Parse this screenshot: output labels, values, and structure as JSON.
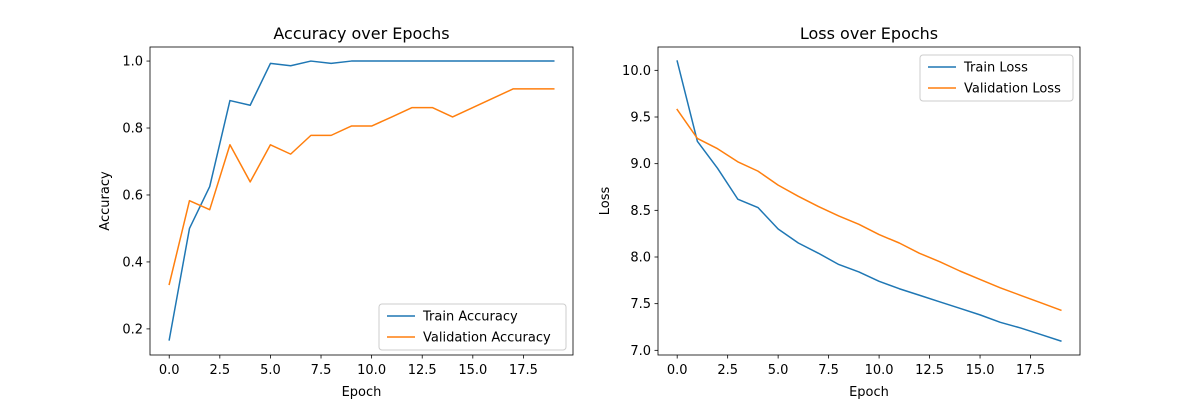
{
  "figure": {
    "background": "#ffffff"
  },
  "chart_data": [
    {
      "type": "line",
      "title": "Accuracy over Epochs",
      "xlabel": "Epoch",
      "ylabel": "Accuracy",
      "xlim": [
        -0.95,
        19.95
      ],
      "ylim": [
        0.122,
        1.042
      ],
      "xticks": [
        0,
        2.5,
        5,
        7.5,
        10,
        12.5,
        15,
        17.5
      ],
      "xtick_labels": [
        "0.0",
        "2.5",
        "5.0",
        "7.5",
        "10.0",
        "12.5",
        "15.0",
        "17.5"
      ],
      "yticks": [
        0.2,
        0.4,
        0.6,
        0.8,
        1.0
      ],
      "ytick_labels": [
        "0.2",
        "0.4",
        "0.6",
        "0.8",
        "1.0"
      ],
      "grid": false,
      "legend_position": "lower-right",
      "x": [
        0,
        1,
        2,
        3,
        4,
        5,
        6,
        7,
        8,
        9,
        10,
        11,
        12,
        13,
        14,
        15,
        16,
        17,
        18,
        19
      ],
      "series": [
        {
          "name": "Train Accuracy",
          "color": "#1f77b4",
          "values": [
            0.167,
            0.5,
            0.625,
            0.882,
            0.868,
            0.993,
            0.986,
            1.0,
            0.993,
            1.0,
            1.0,
            1.0,
            1.0,
            1.0,
            1.0,
            1.0,
            1.0,
            1.0,
            1.0,
            1.0
          ]
        },
        {
          "name": "Validation Accuracy",
          "color": "#ff7f0e",
          "values": [
            0.333,
            0.583,
            0.556,
            0.75,
            0.639,
            0.75,
            0.722,
            0.778,
            0.778,
            0.806,
            0.806,
            0.833,
            0.861,
            0.861,
            0.833,
            0.861,
            0.889,
            0.917,
            0.917,
            0.917
          ]
        }
      ]
    },
    {
      "type": "line",
      "title": "Loss over Epochs",
      "xlabel": "Epoch",
      "ylabel": "Loss",
      "xlim": [
        -0.95,
        19.95
      ],
      "ylim": [
        6.95,
        10.25
      ],
      "xticks": [
        0,
        2.5,
        5,
        7.5,
        10,
        12.5,
        15,
        17.5
      ],
      "xtick_labels": [
        "0.0",
        "2.5",
        "5.0",
        "7.5",
        "10.0",
        "12.5",
        "15.0",
        "17.5"
      ],
      "yticks": [
        7.0,
        7.5,
        8.0,
        8.5,
        9.0,
        9.5,
        10.0
      ],
      "ytick_labels": [
        "7.0",
        "7.5",
        "8.0",
        "8.5",
        "9.0",
        "9.5",
        "10.0"
      ],
      "grid": false,
      "legend_position": "upper-right",
      "x": [
        0,
        1,
        2,
        3,
        4,
        5,
        6,
        7,
        8,
        9,
        10,
        11,
        12,
        13,
        14,
        15,
        16,
        17,
        18,
        19
      ],
      "series": [
        {
          "name": "Train Loss",
          "color": "#1f77b4",
          "values": [
            10.1,
            9.24,
            8.95,
            8.62,
            8.53,
            8.3,
            8.15,
            8.04,
            7.92,
            7.84,
            7.74,
            7.66,
            7.59,
            7.52,
            7.45,
            7.38,
            7.3,
            7.24,
            7.17,
            7.1
          ]
        },
        {
          "name": "Validation Loss",
          "color": "#ff7f0e",
          "values": [
            9.58,
            9.27,
            9.16,
            9.02,
            8.92,
            8.77,
            8.65,
            8.54,
            8.44,
            8.35,
            8.24,
            8.15,
            8.04,
            7.95,
            7.85,
            7.76,
            7.67,
            7.59,
            7.51,
            7.43
          ]
        }
      ]
    }
  ]
}
